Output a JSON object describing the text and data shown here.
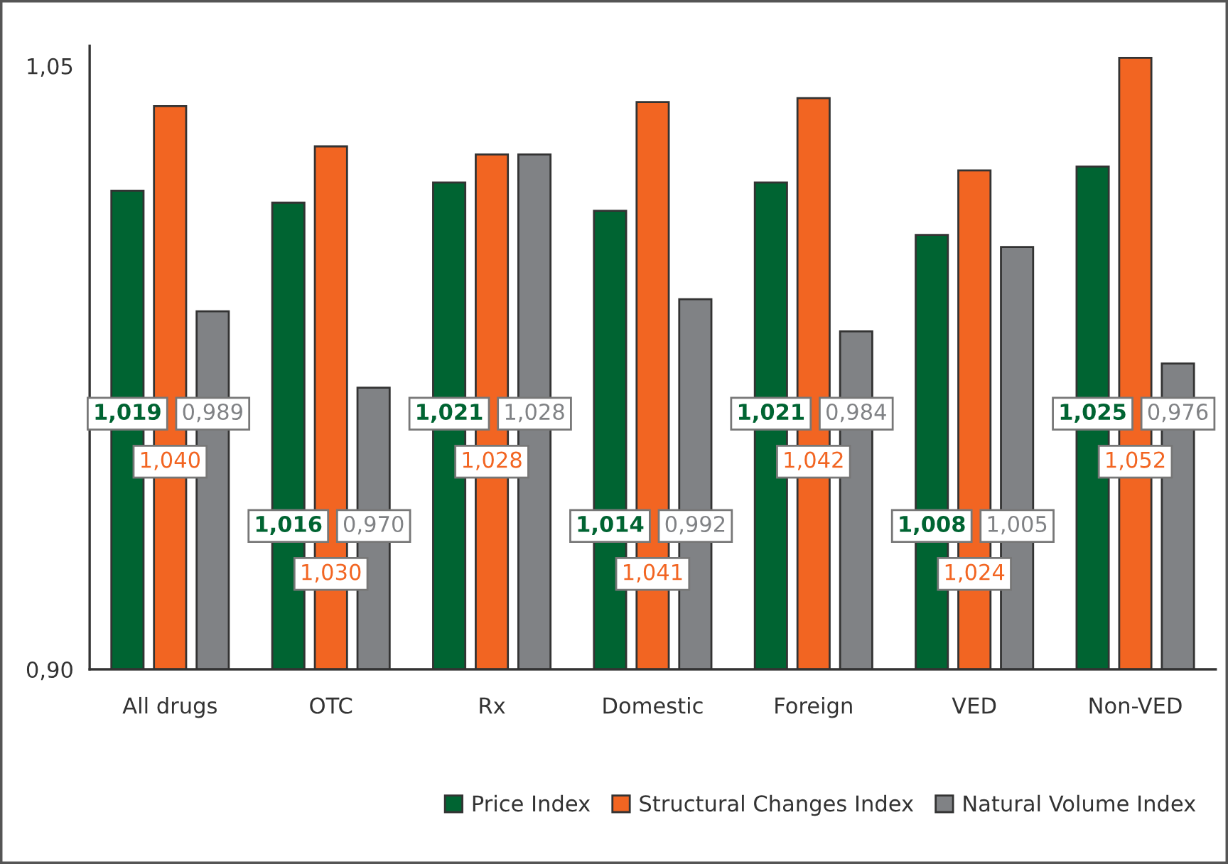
{
  "chart_data": {
    "type": "bar",
    "categories": [
      "All drugs",
      "OTC",
      "Rx",
      "Domestic",
      "Foreign",
      "VED",
      "Non-VED"
    ],
    "series": [
      {
        "name": "Price Index",
        "color": "#006432",
        "values": [
          1.019,
          1.016,
          1.021,
          1.014,
          1.021,
          1.008,
          1.025
        ],
        "value_labels": [
          "1,019",
          "1,016",
          "1,021",
          "1,014",
          "1,021",
          "1,008",
          "1,025"
        ]
      },
      {
        "name": "Structural Changes Index",
        "color": "#f26522",
        "values": [
          1.04,
          1.03,
          1.028,
          1.041,
          1.042,
          1.024,
          1.052
        ],
        "value_labels": [
          "1,040",
          "1,030",
          "1,028",
          "1,041",
          "1,042",
          "1,024",
          "1,052"
        ]
      },
      {
        "name": "Natural Volume Index",
        "color": "#808285",
        "values": [
          0.989,
          0.97,
          1.028,
          0.992,
          0.984,
          1.005,
          0.976
        ],
        "value_labels": [
          "0,989",
          "0,970",
          "1,028",
          "0,992",
          "0,984",
          "1,005",
          "0,976"
        ]
      }
    ],
    "ylim": [
      0.9,
      1.055
    ],
    "yticks": [
      {
        "value": 0.9,
        "label": "0,90"
      },
      {
        "value": 1.05,
        "label": "1,05"
      }
    ],
    "grid": false,
    "legend": "bottom right"
  }
}
